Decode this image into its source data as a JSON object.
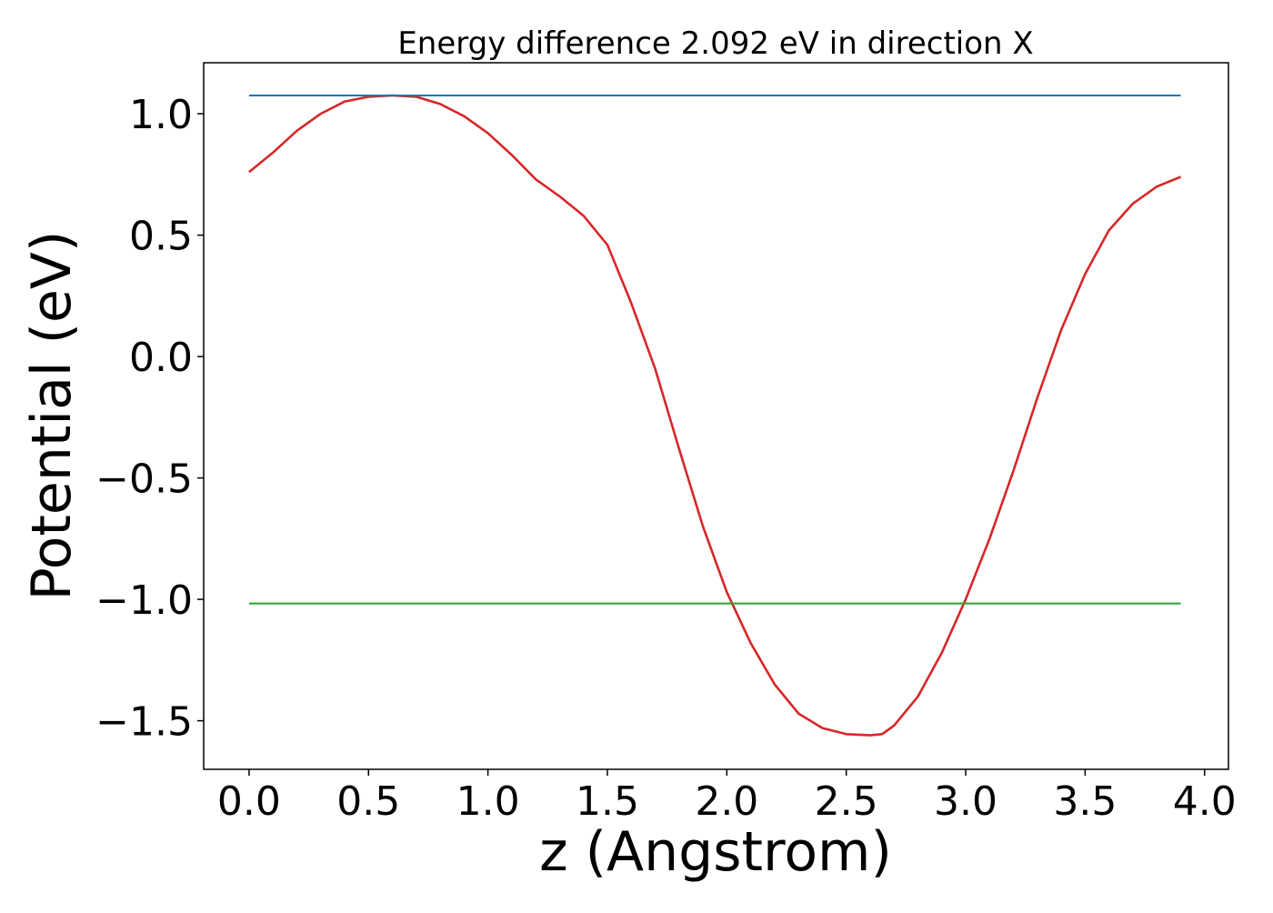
{
  "chart_data": {
    "type": "line",
    "title": "Energy difference 2.092 eV in direction X",
    "xlabel": "z (Angstrom)",
    "ylabel": "Potential (eV)",
    "xlim": [
      -0.19,
      4.1
    ],
    "ylim": [
      -1.7,
      1.21
    ],
    "grid": false,
    "legend": "none",
    "x_ticks": [
      0.0,
      0.5,
      1.0,
      1.5,
      2.0,
      2.5,
      3.0,
      3.5,
      4.0
    ],
    "x_tick_labels": [
      "0.0",
      "0.5",
      "1.0",
      "1.5",
      "2.0",
      "2.5",
      "3.0",
      "3.5",
      "4.0"
    ],
    "y_ticks": [
      1.0,
      0.5,
      0.0,
      -0.5,
      -1.0,
      -1.5
    ],
    "y_tick_labels": [
      "1.0",
      "0.5",
      "0.0",
      "−0.5",
      "−1.0",
      "−1.5"
    ],
    "series": [
      {
        "color": "#d62728",
        "x": [
          0.0,
          0.1,
          0.2,
          0.3,
          0.4,
          0.5,
          0.6,
          0.7,
          0.8,
          0.9,
          1.0,
          1.1,
          1.2,
          1.3,
          1.4,
          1.5,
          1.55,
          1.6,
          1.7,
          1.8,
          1.9,
          2.0,
          2.1,
          2.2,
          2.3,
          2.4,
          2.5,
          2.6,
          2.65,
          2.7,
          2.8,
          2.9,
          3.0,
          3.1,
          3.2,
          3.3,
          3.4,
          3.5,
          3.6,
          3.7,
          3.8,
          3.9
        ],
        "y": [
          0.76,
          0.84,
          0.93,
          1.0,
          1.05,
          1.07,
          1.075,
          1.07,
          1.04,
          0.99,
          0.92,
          0.83,
          0.73,
          0.66,
          0.58,
          0.46,
          0.34,
          0.22,
          -0.05,
          -0.38,
          -0.7,
          -0.97,
          -1.18,
          -1.35,
          -1.47,
          -1.53,
          -1.555,
          -1.56,
          -1.555,
          -1.52,
          -1.4,
          -1.22,
          -1.0,
          -0.75,
          -0.47,
          -0.17,
          0.11,
          0.34,
          0.52,
          0.63,
          0.7,
          0.74
        ]
      },
      {
        "color": "#1f77b4",
        "x": [
          0.0,
          3.9
        ],
        "y": [
          1.075,
          1.075
        ]
      },
      {
        "color": "#2ca02c",
        "x": [
          0.0,
          3.9
        ],
        "y": [
          -1.017,
          -1.017
        ]
      }
    ]
  }
}
